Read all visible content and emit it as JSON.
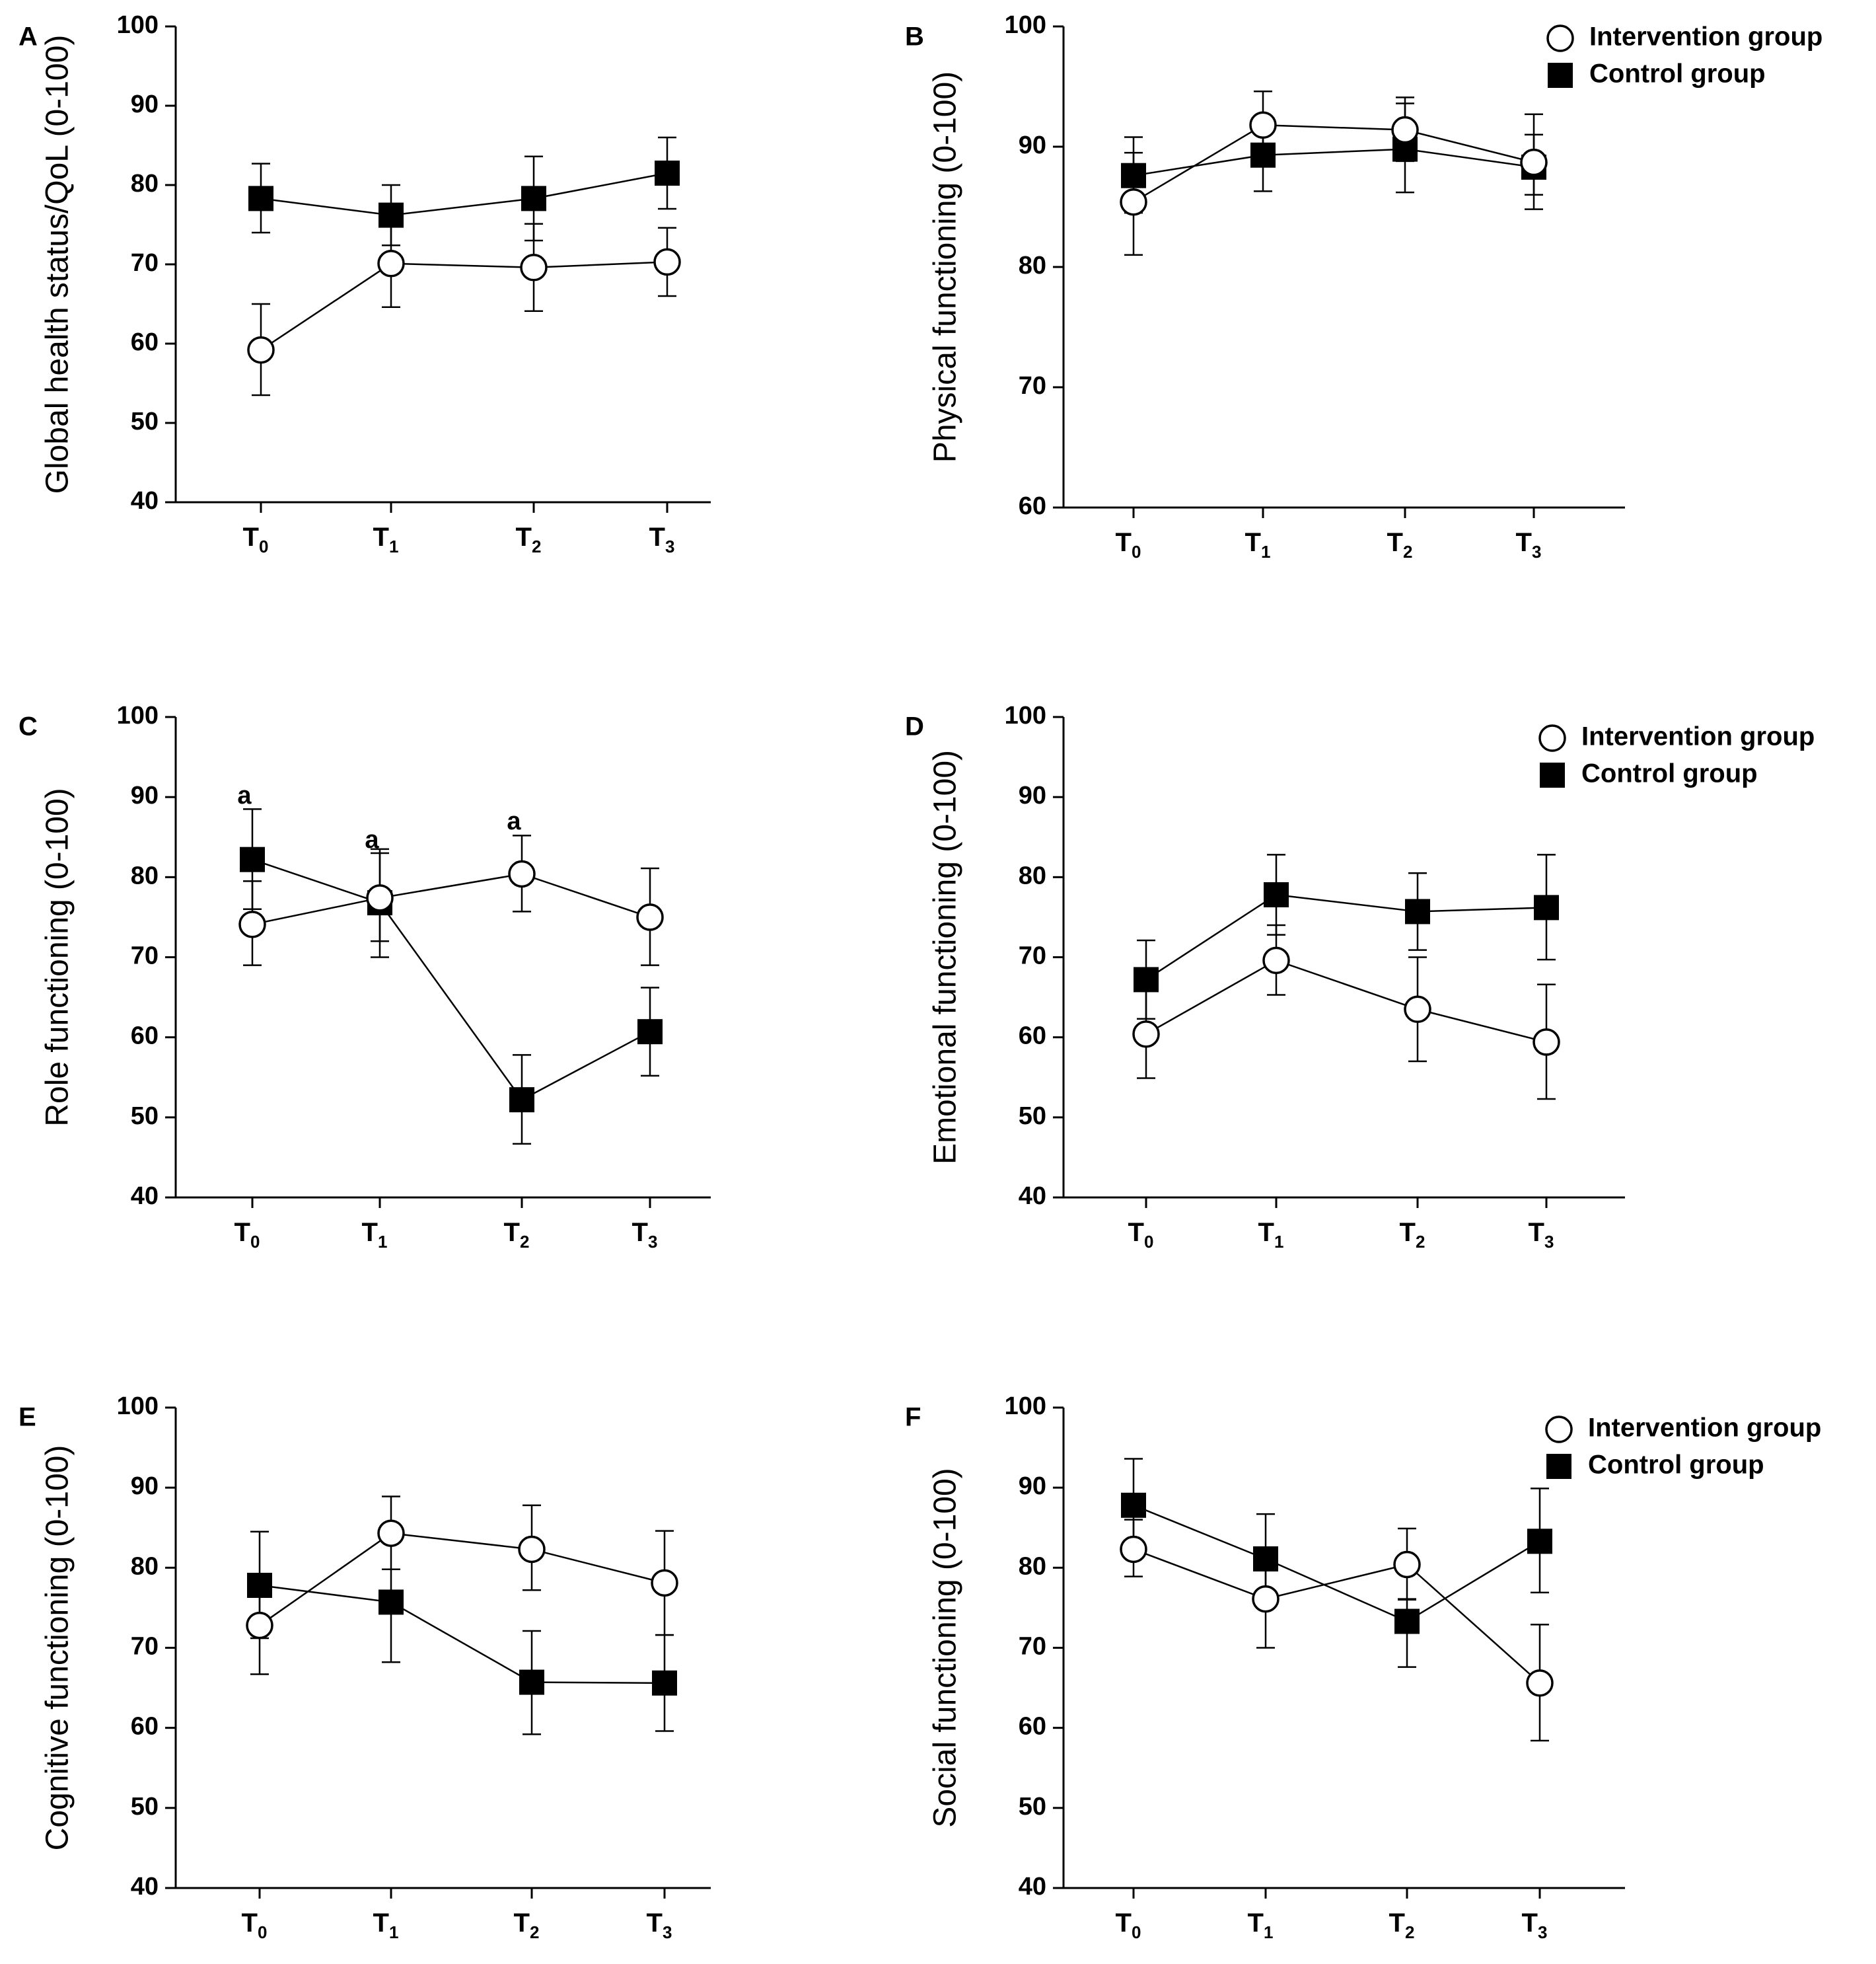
{
  "chart_data": [
    {
      "panel": "A",
      "type": "line",
      "ylabel": "Global health status/QoL (0-100)",
      "ylim": [
        40,
        100
      ],
      "yticks": [
        40,
        50,
        60,
        70,
        80,
        90,
        100
      ],
      "categories": [
        {
          "base": "T",
          "sub": "0"
        },
        {
          "base": "T",
          "sub": "1"
        },
        {
          "base": "T",
          "sub": "2"
        },
        {
          "base": "T",
          "sub": "3"
        }
      ],
      "series": [
        {
          "name": "Control group",
          "marker": "square",
          "values": [
            78.3,
            76.2,
            78.3,
            81.5
          ],
          "err_upper": [
            82.7,
            80.0,
            83.6,
            86.0
          ],
          "err_lower": [
            74.0,
            72.4,
            73.0,
            77.0
          ]
        },
        {
          "name": "Intervention group",
          "marker": "circle",
          "values": [
            59.2,
            70.1,
            69.6,
            70.3
          ],
          "err_upper": [
            65.0,
            75.6,
            75.1,
            74.6
          ],
          "err_lower": [
            53.5,
            64.6,
            64.1,
            66.0
          ]
        }
      ],
      "legend": null,
      "annotations": []
    },
    {
      "panel": "B",
      "type": "line",
      "ylabel": "Physical functioning (0-100)",
      "ylim": [
        60,
        100
      ],
      "yticks": [
        60,
        70,
        80,
        90,
        100
      ],
      "categories": [
        {
          "base": "T",
          "sub": "0"
        },
        {
          "base": "T",
          "sub": "1"
        },
        {
          "base": "T",
          "sub": "2"
        },
        {
          "base": "T",
          "sub": "3"
        }
      ],
      "series": [
        {
          "name": "Control group",
          "marker": "square",
          "values": [
            87.6,
            89.3,
            89.8,
            88.3
          ],
          "err_upper": [
            90.8,
            92.4,
            93.6,
            91.0
          ],
          "err_lower": [
            84.5,
            86.3,
            86.2,
            84.8
          ]
        },
        {
          "name": "Intervention group",
          "marker": "circle",
          "values": [
            85.4,
            91.8,
            91.4,
            88.7
          ],
          "err_upper": [
            89.5,
            94.6,
            94.1,
            92.7
          ],
          "err_lower": [
            81.0,
            89.2,
            88.8,
            86.0
          ]
        }
      ],
      "legend": {
        "position": "top-right",
        "items": [
          "Intervention group",
          "Control group"
        ]
      },
      "annotations": []
    },
    {
      "panel": "C",
      "type": "line",
      "ylabel": "Role functioning (0-100)",
      "ylim": [
        40,
        100
      ],
      "yticks": [
        40,
        50,
        60,
        70,
        80,
        90,
        100
      ],
      "categories": [
        {
          "base": "T",
          "sub": "0"
        },
        {
          "base": "T",
          "sub": "1"
        },
        {
          "base": "T",
          "sub": "2"
        },
        {
          "base": "T",
          "sub": "3"
        }
      ],
      "series": [
        {
          "name": "Control group",
          "marker": "square",
          "values": [
            82.2,
            76.8,
            52.2,
            60.7
          ],
          "err_upper": [
            88.5,
            83.0,
            57.8,
            66.2
          ],
          "err_lower": [
            76.0,
            70.0,
            46.7,
            55.2
          ]
        },
        {
          "name": "Intervention group",
          "marker": "circle",
          "values": [
            74.1,
            77.4,
            80.4,
            75.0
          ],
          "err_upper": [
            79.5,
            83.5,
            85.2,
            81.1
          ],
          "err_lower": [
            69.0,
            72.0,
            75.7,
            69.0
          ]
        }
      ],
      "legend": null,
      "annotations": [
        {
          "text": "a",
          "category_index": 0,
          "value": 90.0
        },
        {
          "text": "a",
          "category_index": 1,
          "value": 84.5
        },
        {
          "text": "a",
          "category_index": 2,
          "value": 86.8
        }
      ]
    },
    {
      "panel": "D",
      "type": "line",
      "ylabel": "Emotional functioning (0-100)",
      "ylim": [
        40,
        100
      ],
      "yticks": [
        40,
        50,
        60,
        70,
        80,
        90,
        100
      ],
      "categories": [
        {
          "base": "T",
          "sub": "0"
        },
        {
          "base": "T",
          "sub": "1"
        },
        {
          "base": "T",
          "sub": "2"
        },
        {
          "base": "T",
          "sub": "3"
        }
      ],
      "series": [
        {
          "name": "Control group",
          "marker": "square",
          "values": [
            67.2,
            77.8,
            75.7,
            76.2
          ],
          "err_upper": [
            72.1,
            82.8,
            80.5,
            82.8
          ],
          "err_lower": [
            62.3,
            72.8,
            70.9,
            69.7
          ]
        },
        {
          "name": "Intervention group",
          "marker": "circle",
          "values": [
            60.4,
            69.6,
            63.5,
            59.4
          ],
          "err_upper": [
            66.0,
            74.0,
            70.0,
            66.6
          ],
          "err_lower": [
            54.9,
            65.3,
            57.0,
            52.3
          ]
        }
      ],
      "legend": {
        "position": "top-right",
        "items": [
          "Intervention group",
          "Control group"
        ]
      },
      "annotations": []
    },
    {
      "panel": "E",
      "type": "line",
      "ylabel": "Cognitive functioning (0-100)",
      "ylim": [
        40,
        100
      ],
      "yticks": [
        40,
        50,
        60,
        70,
        80,
        90,
        100
      ],
      "categories": [
        {
          "base": "T",
          "sub": "0"
        },
        {
          "base": "T",
          "sub": "1"
        },
        {
          "base": "T",
          "sub": "2"
        },
        {
          "base": "T",
          "sub": "3"
        }
      ],
      "series": [
        {
          "name": "Control group",
          "marker": "square",
          "values": [
            77.8,
            75.7,
            65.7,
            65.6
          ],
          "err_upper": [
            84.5,
            79.8,
            72.1,
            71.6
          ],
          "err_lower": [
            71.2,
            68.2,
            59.2,
            59.6
          ]
        },
        {
          "name": "Intervention group",
          "marker": "circle",
          "values": [
            72.8,
            84.3,
            82.3,
            78.1
          ],
          "err_upper": [
            78.1,
            88.9,
            87.8,
            84.6
          ],
          "err_lower": [
            66.7,
            79.8,
            77.2,
            71.6
          ]
        }
      ],
      "legend": null,
      "annotations": []
    },
    {
      "panel": "F",
      "type": "line",
      "ylabel": "Social functioning (0-100)",
      "ylim": [
        40,
        100
      ],
      "yticks": [
        40,
        50,
        60,
        70,
        80,
        90,
        100
      ],
      "categories": [
        {
          "base": "T",
          "sub": "0"
        },
        {
          "base": "T",
          "sub": "1"
        },
        {
          "base": "T",
          "sub": "2"
        },
        {
          "base": "T",
          "sub": "3"
        }
      ],
      "series": [
        {
          "name": "Control group",
          "marker": "square",
          "values": [
            87.8,
            81.1,
            73.3,
            83.3
          ],
          "err_upper": [
            93.6,
            86.7,
            76.1,
            89.9
          ],
          "err_lower": [
            82.0,
            75.5,
            67.6,
            76.9
          ]
        },
        {
          "name": "Intervention group",
          "marker": "circle",
          "values": [
            82.3,
            76.1,
            80.4,
            65.6
          ],
          "err_upper": [
            86.0,
            81.4,
            84.9,
            72.9
          ],
          "err_lower": [
            78.9,
            70.0,
            76.0,
            58.4
          ]
        }
      ],
      "legend": {
        "position": "top-right",
        "items": [
          "Intervention group",
          "Control group"
        ]
      },
      "annotations": []
    }
  ]
}
